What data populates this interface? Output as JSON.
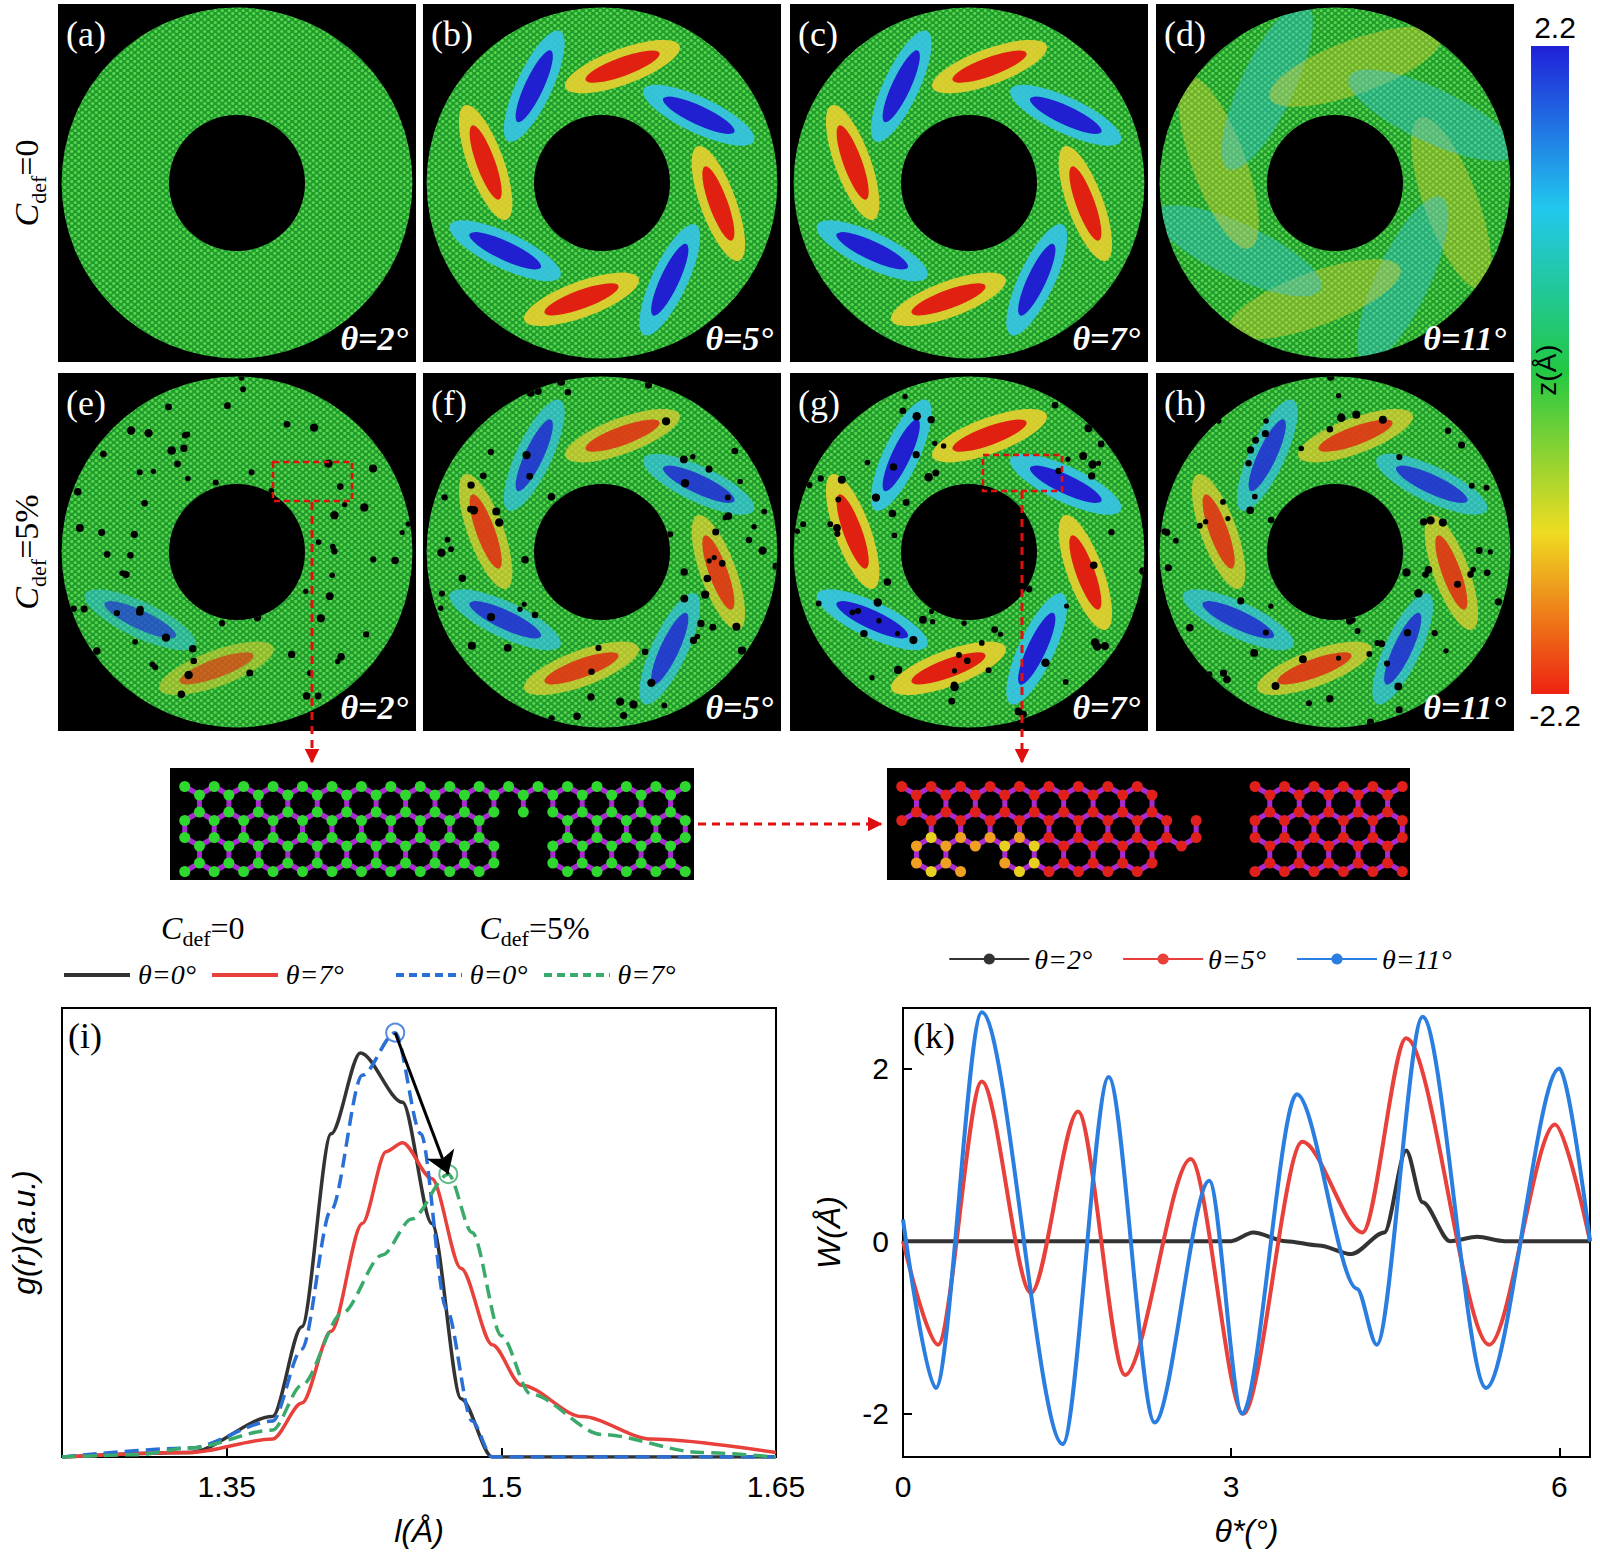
{
  "figure": {
    "row_labels": [
      {
        "symbol": "C",
        "subscript": "def",
        "suffix": "=0"
      },
      {
        "symbol": "C",
        "subscript": "def",
        "suffix": "=5%"
      }
    ],
    "panels": [
      {
        "letter": "(a)",
        "label": "θ=2°"
      },
      {
        "letter": "(b)",
        "label": "θ=5°"
      },
      {
        "letter": "(c)",
        "label": "θ=7°"
      },
      {
        "letter": "(d)",
        "label": "θ=11°"
      },
      {
        "letter": "(e)",
        "label": "θ=2°"
      },
      {
        "letter": "(f)",
        "label": "θ=5°"
      },
      {
        "letter": "(g)",
        "label": "θ=7°"
      },
      {
        "letter": "(h)",
        "label": "θ=11°"
      }
    ],
    "colorbar": {
      "label": "z(Å)",
      "range": [
        -2.2,
        2.2
      ],
      "ticks": [
        2.2,
        -2.2
      ]
    }
  },
  "chart_data": [
    {
      "type": "line",
      "panel": "(i)",
      "x_label": "l(Å)",
      "y_label": "g(r)(a.u.)",
      "xlim": [
        1.26,
        1.65
      ],
      "xticks": [
        1.35,
        1.5,
        1.65
      ],
      "ylim": [
        0,
        1
      ],
      "tick_labels": "x",
      "grid": false,
      "legend": "top",
      "groups": [
        {
          "label": {
            "symbol": "C",
            "subscript": "def",
            "suffix": "=0"
          },
          "series": [
            {
              "name": "θ=0°",
              "color": "#333333",
              "line_style": "solid",
              "x": [
                1.26,
                1.33,
                1.375,
                1.391,
                1.407,
                1.423,
                1.446,
                1.462,
                1.478,
                1.495,
                1.52,
                1.65
              ],
              "values": [
                0,
                0.01,
                0.09,
                0.29,
                0.72,
                0.9,
                0.79,
                0.52,
                0.13,
                0,
                0,
                0
              ]
            },
            {
              "name": "θ=7°",
              "color": "#e8403a",
              "line_style": "solid",
              "x": [
                1.26,
                1.33,
                1.375,
                1.391,
                1.407,
                1.424,
                1.437,
                1.446,
                1.462,
                1.478,
                1.495,
                1.511,
                1.544,
                1.582,
                1.65
              ],
              "values": [
                0,
                0.01,
                0.04,
                0.12,
                0.28,
                0.52,
                0.68,
                0.7,
                0.62,
                0.42,
                0.25,
                0.16,
                0.09,
                0.04,
                0.01
              ]
            }
          ]
        },
        {
          "label": {
            "symbol": "C",
            "subscript": "def",
            "suffix": "=5%"
          },
          "series": [
            {
              "name": "θ=0°",
              "color": "#2a6fd6",
              "line_style": "dashed",
              "x": [
                1.26,
                1.33,
                1.375,
                1.391,
                1.407,
                1.424,
                1.442,
                1.456,
                1.47,
                1.484,
                1.495,
                1.52,
                1.65
              ],
              "values": [
                0,
                0.02,
                0.08,
                0.24,
                0.55,
                0.85,
                0.945,
                0.72,
                0.33,
                0.08,
                0,
                0,
                0
              ]
            },
            {
              "name": "θ=7°",
              "color": "#3aaa6a",
              "line_style": "dashed",
              "x": [
                1.26,
                1.3,
                1.33,
                1.375,
                1.391,
                1.413,
                1.435,
                1.451,
                1.471,
                1.484,
                1.5,
                1.516,
                1.555,
                1.609,
                1.65
              ],
              "values": [
                0,
                0.005,
                0.02,
                0.06,
                0.16,
                0.32,
                0.45,
                0.53,
                0.63,
                0.5,
                0.27,
                0.14,
                0.05,
                0.01,
                0
              ]
            }
          ]
        }
      ],
      "peak_markers": [
        {
          "x": 1.442,
          "y": 0.945,
          "color": "#2a6fd6"
        },
        {
          "x": 1.471,
          "y": 0.63,
          "color": "#3aaa6a"
        }
      ]
    },
    {
      "type": "line",
      "panel": "(k)",
      "x_label": "θ*(°)",
      "y_label": "W(Å)",
      "xlim": [
        0,
        6.28
      ],
      "xticks": [
        0,
        3,
        6
      ],
      "ylim": [
        -2.5,
        2.7
      ],
      "yticks": [
        -2,
        0,
        2
      ],
      "grid": false,
      "legend": "top",
      "series": [
        {
          "name": "θ=2°",
          "color": "#333333",
          "line_style": "solid",
          "x": [
            0,
            0.5,
            1,
            1.5,
            2,
            2.5,
            3,
            3.2,
            3.5,
            3.8,
            4.1,
            4.4,
            4.6,
            4.75,
            5.0,
            5.25,
            5.5,
            6,
            6.28
          ],
          "values": [
            0,
            0,
            0,
            0,
            0,
            0,
            0,
            0.1,
            0,
            -0.05,
            -0.15,
            0.1,
            1.05,
            0.45,
            0,
            0.05,
            0,
            0,
            0
          ]
        },
        {
          "name": "θ=5°",
          "color": "#e8403a",
          "line_style": "solid",
          "x": [
            0,
            0.32,
            0.72,
            1.17,
            1.6,
            2.03,
            2.63,
            3.11,
            3.65,
            4.2,
            4.6,
            5.36,
            5.96,
            6.28
          ],
          "values": [
            0,
            -1.2,
            1.85,
            -0.6,
            1.5,
            -1.55,
            0.95,
            -2.0,
            1.15,
            0.1,
            2.35,
            -1.2,
            1.35,
            0
          ]
        },
        {
          "name": "θ=11°",
          "color": "#2a7ee0",
          "line_style": "solid",
          "x": [
            0,
            0.3,
            0.72,
            1.46,
            1.88,
            2.3,
            2.8,
            3.1,
            3.6,
            4.15,
            4.33,
            4.75,
            5.33,
            6.0,
            6.28
          ],
          "values": [
            0.25,
            -1.7,
            2.65,
            -2.35,
            1.9,
            -2.1,
            0.7,
            -2.0,
            1.7,
            -0.55,
            -1.2,
            2.6,
            -1.7,
            2.0,
            0
          ]
        }
      ]
    }
  ]
}
